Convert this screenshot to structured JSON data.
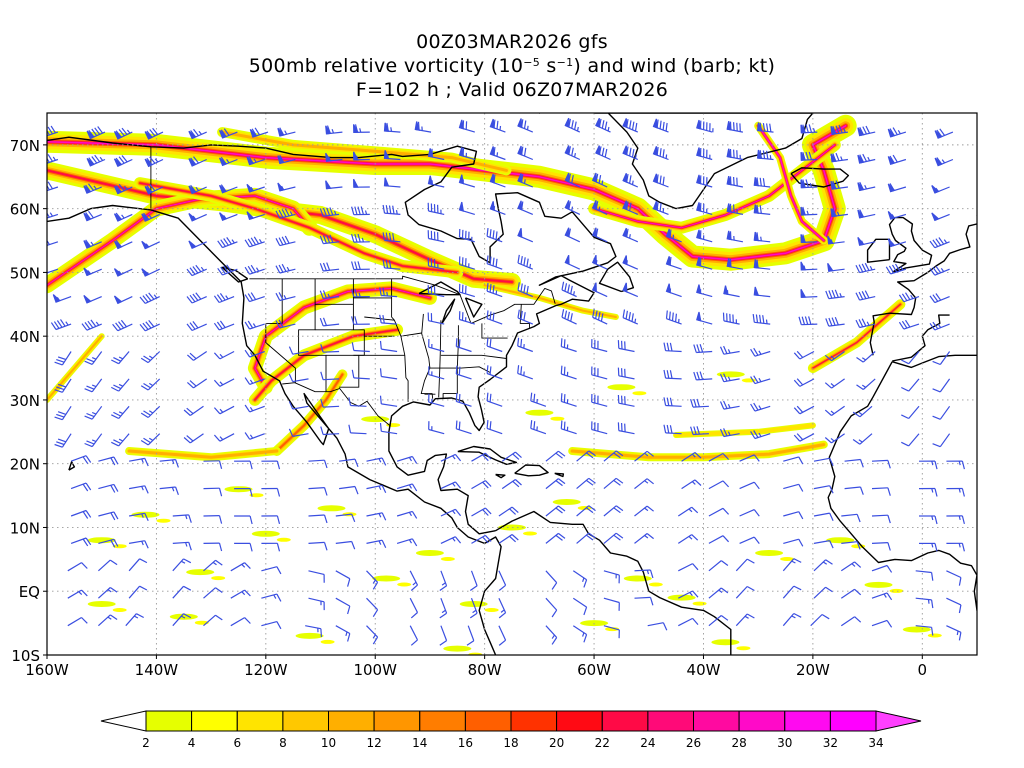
{
  "title": {
    "line1": "00Z03MAR2026 gfs",
    "line2_main": "500mb relative vorticity (10",
    "line2_exp1": "−5",
    "line2_mid": " s",
    "line2_exp2": "−1",
    "line2_end": ") and wind (barb; kt)",
    "line3": "F=102 h ; Valid 06Z07MAR2026"
  },
  "map": {
    "lat_labels": [
      "70N",
      "60N",
      "50N",
      "40N",
      "30N",
      "20N",
      "10N",
      "EQ",
      "10S"
    ],
    "lat_values": [
      70,
      60,
      50,
      40,
      30,
      20,
      10,
      0,
      -10
    ],
    "lon_labels": [
      "160W",
      "140W",
      "120W",
      "100W",
      "80W",
      "60W",
      "40W",
      "20W",
      "0"
    ],
    "lon_values": [
      -160,
      -140,
      -120,
      -100,
      -80,
      -60,
      -40,
      -20,
      0
    ],
    "lon_range": [
      -160,
      10
    ],
    "lat_range": [
      -10,
      75
    ],
    "grid": "dotted gray",
    "barb_color": "#3a4ee0"
  },
  "colorbar": {
    "levels": [
      "2",
      "4",
      "6",
      "8",
      "10",
      "12",
      "14",
      "16",
      "18",
      "20",
      "22",
      "24",
      "26",
      "28",
      "30",
      "32",
      "34"
    ],
    "colors": [
      "#ffffff",
      "#e6ff00",
      "#ffff00",
      "#ffe400",
      "#ffc800",
      "#ffaf00",
      "#ff9600",
      "#ff7d00",
      "#ff5f00",
      "#ff3200",
      "#ff0a14",
      "#ff0a46",
      "#ff0a78",
      "#ff0aa0",
      "#ff0ac8",
      "#ff0af0",
      "#ff00ff",
      "#ff40ff"
    ]
  }
}
